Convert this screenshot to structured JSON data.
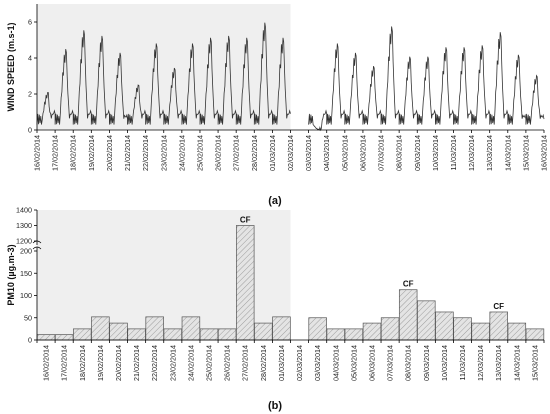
{
  "chart_data": [
    {
      "panel": "(a)",
      "type": "line",
      "ylabel": "WIND SPEED (m.s-1)",
      "ylim": [
        0,
        7
      ],
      "yticks": [
        0,
        2,
        4,
        6
      ],
      "shaded_range": [
        "16/02/2014",
        "02/03/2014"
      ],
      "x_ticks": [
        "16/02/2014",
        "17/02/2014",
        "18/02/2014",
        "19/02/2014",
        "20/02/2014",
        "21/02/2014",
        "22/02/2014",
        "23/02/2014",
        "24/02/2014",
        "25/02/2014",
        "26/02/2014",
        "27/02/2014",
        "28/02/2014",
        "01/03/2014",
        "02/03/2014",
        "03/03/2014",
        "04/03/2014",
        "05/03/2014",
        "06/03/2014",
        "07/03/2014",
        "08/03/2014",
        "09/03/2014",
        "10/03/2014",
        "11/03/2014",
        "12/03/2014",
        "13/03/2014",
        "14/03/2014",
        "15/03/2014",
        "16/03/2014"
      ],
      "daily_peak_speed": [
        2.0,
        4.3,
        5.3,
        5.0,
        4.1,
        2.4,
        4.6,
        3.3,
        4.6,
        4.9,
        5.0,
        4.9,
        5.7,
        4.9,
        3.8,
        0.0,
        4.6,
        4.1,
        3.4,
        5.5,
        3.9,
        3.9,
        4.4,
        4.4,
        4.5,
        5.2,
        4.0,
        2.9,
        2.8
      ],
      "gap_after": "02/03/2014"
    },
    {
      "panel": "(b)",
      "type": "bar",
      "ylabel": "PM10  (µg.m-3)",
      "y_lower_ticks": [
        0,
        50,
        100,
        150,
        200
      ],
      "y_upper_ticks": [
        1200,
        1300,
        1400
      ],
      "axis_break": [
        200,
        1200
      ],
      "shaded_range": [
        "16/02/2014",
        "02/03/2014"
      ],
      "categories": [
        "16/02/2014",
        "17/02/2014",
        "18/02/2014",
        "19/02/2014",
        "20/02/2014",
        "21/02/2014",
        "22/02/2014",
        "23/02/2014",
        "24/02/2014",
        "25/02/2014",
        "26/02/2014",
        "27/02/2014",
        "28/02/2014",
        "01/03/2014",
        "02/03/2014",
        "03/03/2014",
        "04/03/2014",
        "05/03/2014",
        "06/03/2014",
        "07/03/2014",
        "08/03/2014",
        "09/03/2014",
        "10/03/2014",
        "11/03/2014",
        "12/03/2014",
        "13/03/2014",
        "14/03/2014",
        "15/03/2014",
        "16/03/2014"
      ],
      "values": [
        12,
        12,
        25,
        52,
        38,
        25,
        52,
        25,
        52,
        25,
        25,
        1300,
        38,
        52,
        null,
        50,
        25,
        25,
        38,
        50,
        113,
        88,
        63,
        50,
        38,
        63,
        38,
        25,
        null
      ],
      "annotations": [
        {
          "label": "CF",
          "category": "27/02/2014"
        },
        {
          "label": "CF",
          "category": "08/03/2014"
        },
        {
          "label": "CF",
          "category": "13/03/2014"
        }
      ]
    }
  ]
}
